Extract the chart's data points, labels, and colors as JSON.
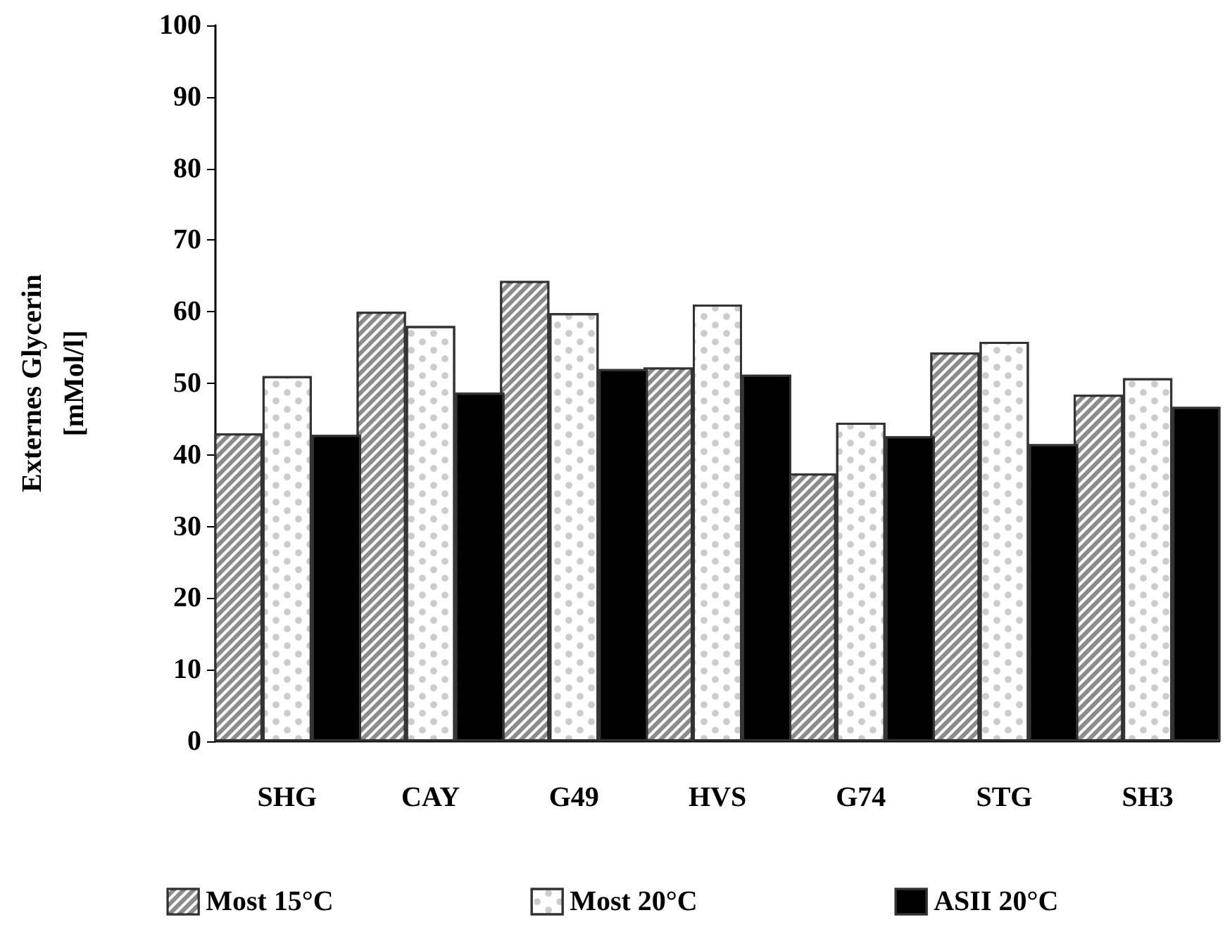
{
  "chart_data": {
    "type": "bar",
    "ylabel": "Externes Glycerin\n[mMol/l]",
    "categories": [
      "SHG",
      "CAY",
      "G49",
      "HVS",
      "G74",
      "STG",
      "SH3"
    ],
    "series": [
      {
        "name": "Most 15°C",
        "color": "#8c8c8c",
        "values": [
          43,
          60,
          64.3,
          52.2,
          37.4,
          54.3,
          48.4
        ]
      },
      {
        "name": "Most 20°C",
        "color": "#ffffff",
        "values": [
          51,
          58,
          59.8,
          61,
          44.5,
          55.8,
          50.7
        ]
      },
      {
        "name": "ASII 20°C",
        "color": "#000000",
        "values": [
          42.8,
          48.7,
          52,
          51.2,
          42.6,
          41.5,
          46.7
        ]
      }
    ],
    "ylim": [
      0,
      100
    ],
    "yticks": [
      0,
      10,
      20,
      30,
      40,
      50,
      60,
      70,
      80,
      90,
      100
    ],
    "grid": false,
    "legend": "bottom"
  }
}
